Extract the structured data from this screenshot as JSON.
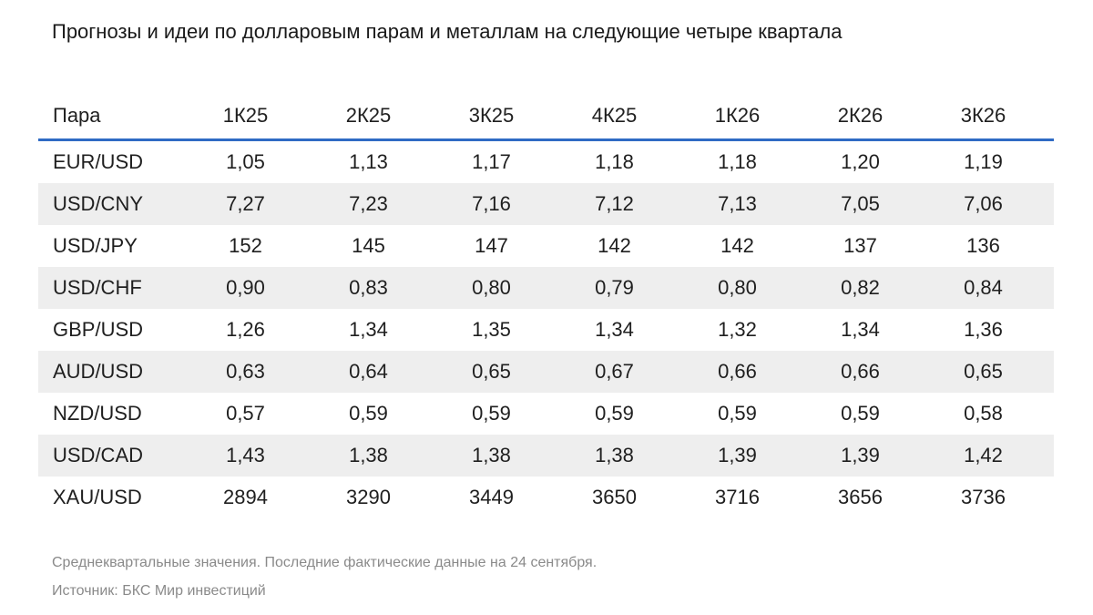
{
  "title": "Прогнозы и идеи по долларовым парам и металлам на следующие четыре квартала",
  "table": {
    "pair_header": "Пара",
    "columns": [
      "1К25",
      "2К25",
      "3К25",
      "4К25",
      "1К26",
      "2К26",
      "3К26"
    ],
    "rows": [
      {
        "pair": "EUR/USD",
        "values": [
          "1,05",
          "1,13",
          "1,17",
          "1,18",
          "1,18",
          "1,20",
          "1,19"
        ],
        "shaded": false
      },
      {
        "pair": "USD/CNY",
        "values": [
          "7,27",
          "7,23",
          "7,16",
          "7,12",
          "7,13",
          "7,05",
          "7,06"
        ],
        "shaded": true
      },
      {
        "pair": "USD/JPY",
        "values": [
          "152",
          "145",
          "147",
          "142",
          "142",
          "137",
          "136"
        ],
        "shaded": false
      },
      {
        "pair": "USD/CHF",
        "values": [
          "0,90",
          "0,83",
          "0,80",
          "0,79",
          "0,80",
          "0,82",
          "0,84"
        ],
        "shaded": true
      },
      {
        "pair": "GBP/USD",
        "values": [
          "1,26",
          "1,34",
          "1,35",
          "1,34",
          "1,32",
          "1,34",
          "1,36"
        ],
        "shaded": false
      },
      {
        "pair": "AUD/USD",
        "values": [
          "0,63",
          "0,64",
          "0,65",
          "0,67",
          "0,66",
          "0,66",
          "0,65"
        ],
        "shaded": true
      },
      {
        "pair": "NZD/USD",
        "values": [
          "0,57",
          "0,59",
          "0,59",
          "0,59",
          "0,59",
          "0,59",
          "0,58"
        ],
        "shaded": false
      },
      {
        "pair": "USD/CAD",
        "values": [
          "1,43",
          "1,38",
          "1,38",
          "1,38",
          "1,39",
          "1,39",
          "1,42"
        ],
        "shaded": true
      },
      {
        "pair": "XAU/USD",
        "values": [
          "2894",
          "3290",
          "3449",
          "3650",
          "3716",
          "3656",
          "3736"
        ],
        "shaded": false
      }
    ]
  },
  "footnotes": {
    "note": "Среднеквартальные значения. Последние фактические данные на 24 сентября.",
    "source": "Источник: БКС Мир инвестиций"
  },
  "colors": {
    "header_rule": "#2f6bc4",
    "shaded_row": "#eeeeee",
    "footnote_text": "#8a8a8a"
  },
  "chart_data": {
    "type": "table",
    "title": "Прогнозы и идеи по долларовым парам и металлам на следующие четыре квартала",
    "columns": [
      "Пара",
      "1К25",
      "2К25",
      "3К25",
      "4К25",
      "1К26",
      "2К26",
      "3К26"
    ],
    "rows": [
      [
        "EUR/USD",
        1.05,
        1.13,
        1.17,
        1.18,
        1.18,
        1.2,
        1.19
      ],
      [
        "USD/CNY",
        7.27,
        7.23,
        7.16,
        7.12,
        7.13,
        7.05,
        7.06
      ],
      [
        "USD/JPY",
        152,
        145,
        147,
        142,
        142,
        137,
        136
      ],
      [
        "USD/CHF",
        0.9,
        0.83,
        0.8,
        0.79,
        0.8,
        0.82,
        0.84
      ],
      [
        "GBP/USD",
        1.26,
        1.34,
        1.35,
        1.34,
        1.32,
        1.34,
        1.36
      ],
      [
        "AUD/USD",
        0.63,
        0.64,
        0.65,
        0.67,
        0.66,
        0.66,
        0.65
      ],
      [
        "NZD/USD",
        0.57,
        0.59,
        0.59,
        0.59,
        0.59,
        0.59,
        0.58
      ],
      [
        "USD/CAD",
        1.43,
        1.38,
        1.38,
        1.38,
        1.39,
        1.39,
        1.42
      ],
      [
        "XAU/USD",
        2894,
        3290,
        3449,
        3650,
        3716,
        3656,
        3736
      ]
    ]
  }
}
